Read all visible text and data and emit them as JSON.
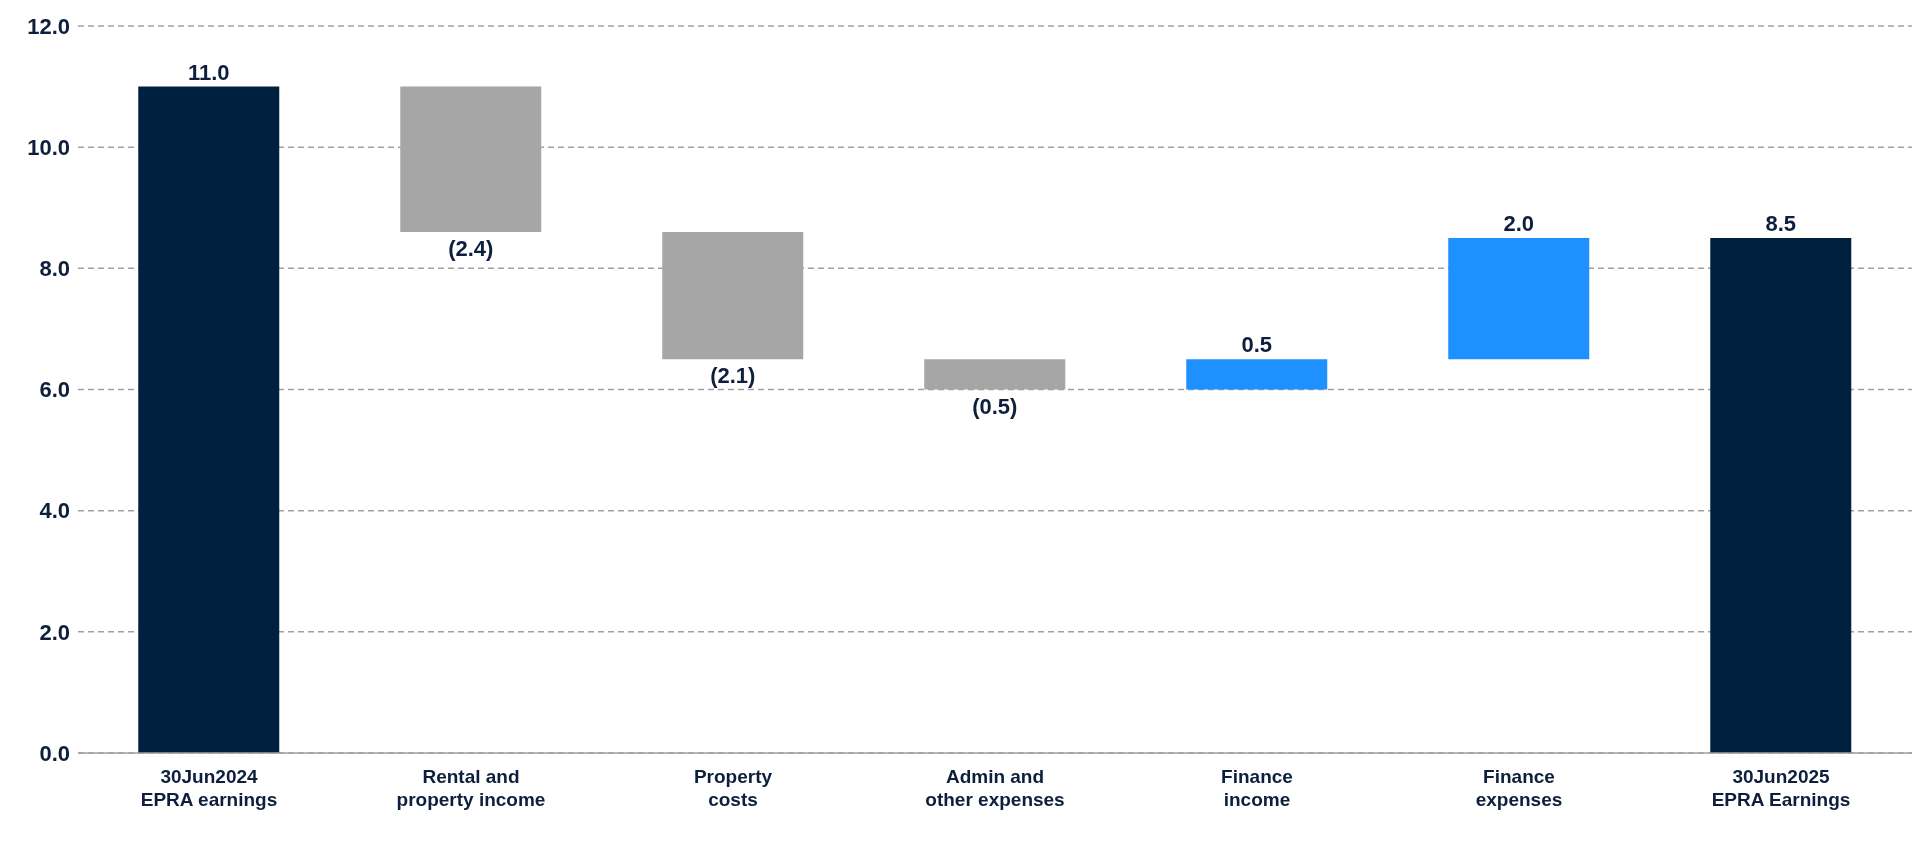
{
  "chart_data": {
    "type": "bar",
    "categories": [
      "30Jun2024\nEPRA earnings",
      "Rental and\nproperty income",
      "Property\ncosts",
      "Admin and\nother expenses",
      "Finance\nincome",
      "Finance\nexpenses",
      "30Jun2025\nEPRA Earnings"
    ],
    "values": [
      11.0,
      -2.4,
      -2.1,
      -0.5,
      0.5,
      2.0,
      8.5
    ],
    "base": [
      0,
      11.0,
      8.6,
      6.5,
      6.0,
      6.5,
      0
    ],
    "colors": [
      "#00203f",
      "#a6a6a6",
      "#a6a6a6",
      "#a6a6a6",
      "#1e90ff",
      "#1e90ff",
      "#00203f"
    ],
    "value_labels": [
      "11.0",
      "(2.4)",
      "(2.1)",
      "(0.5)",
      "0.5",
      "2.0",
      "8.5"
    ],
    "ylim": [
      0,
      12
    ],
    "yticks": [
      {
        "value": 0,
        "label": "0.0"
      },
      {
        "value": 2,
        "label": "2.0"
      },
      {
        "value": 4,
        "label": "4.0"
      },
      {
        "value": 6,
        "label": "6.0"
      },
      {
        "value": 8,
        "label": "8.0"
      },
      {
        "value": 10,
        "label": "10.0"
      },
      {
        "value": 12,
        "label": "12.0"
      }
    ],
    "grid": "y"
  }
}
